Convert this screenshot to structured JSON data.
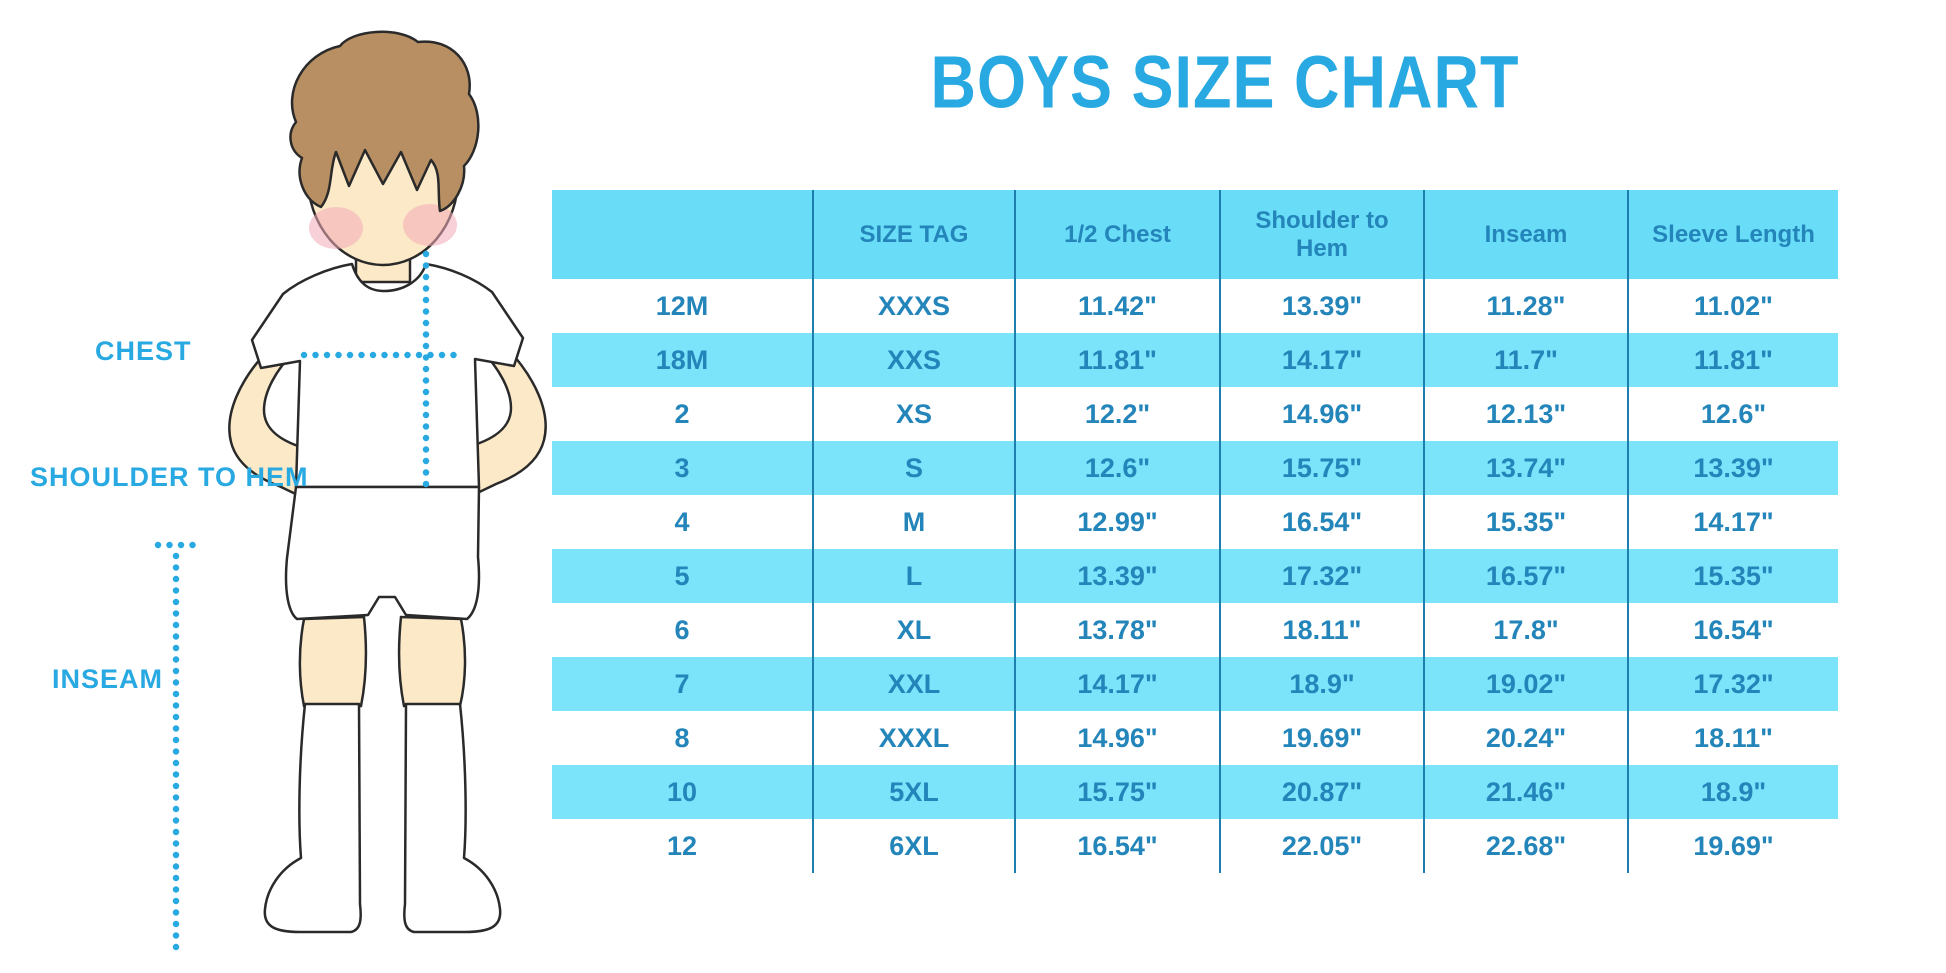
{
  "title": "BOYS SIZE CHART",
  "illustration": {
    "description": "cartoon boy in white t-shirt and shorts with measurement guide lines",
    "labels": {
      "chest": "CHEST",
      "shoulder_to_hem": "SHOULDER TO HEM",
      "inseam": "INSEAM"
    }
  },
  "colors": {
    "accent": "#29A9E1",
    "header_bg": "#69DDF8",
    "stripe_bg": "#7BE3FA",
    "divider": "#1E7FAE",
    "text": "#2385B9"
  },
  "chart_data": {
    "type": "table",
    "title": "BOYS SIZE CHART",
    "columns": [
      "",
      "SIZE TAG",
      "1/2 Chest",
      "Shoulder to Hem",
      "Inseam",
      "Sleeve Length"
    ],
    "rows": [
      [
        "12M",
        "XXXS",
        "11.42\"",
        "13.39\"",
        "11.28\"",
        "11.02\""
      ],
      [
        "18M",
        "XXS",
        "11.81\"",
        "14.17\"",
        "11.7\"",
        "11.81\""
      ],
      [
        "2",
        "XS",
        "12.2\"",
        "14.96\"",
        "12.13\"",
        "12.6\""
      ],
      [
        "3",
        "S",
        "12.6\"",
        "15.75\"",
        "13.74\"",
        "13.39\""
      ],
      [
        "4",
        "M",
        "12.99\"",
        "16.54\"",
        "15.35\"",
        "14.17\""
      ],
      [
        "5",
        "L",
        "13.39\"",
        "17.32\"",
        "16.57\"",
        "15.35\""
      ],
      [
        "6",
        "XL",
        "13.78\"",
        "18.11\"",
        "17.8\"",
        "16.54\""
      ],
      [
        "7",
        "XXL",
        "14.17\"",
        "18.9\"",
        "19.02\"",
        "17.32\""
      ],
      [
        "8",
        "XXXL",
        "14.96\"",
        "19.69\"",
        "20.24\"",
        "18.11\""
      ],
      [
        "10",
        "5XL",
        "15.75\"",
        "20.87\"",
        "21.46\"",
        "18.9\""
      ],
      [
        "12",
        "6XL",
        "16.54\"",
        "22.05\"",
        "22.68\"",
        "19.69\""
      ]
    ],
    "layout": {
      "striped_rows": "alternating white and light blue",
      "grid": "vertical dividers only",
      "legend": "none"
    }
  }
}
